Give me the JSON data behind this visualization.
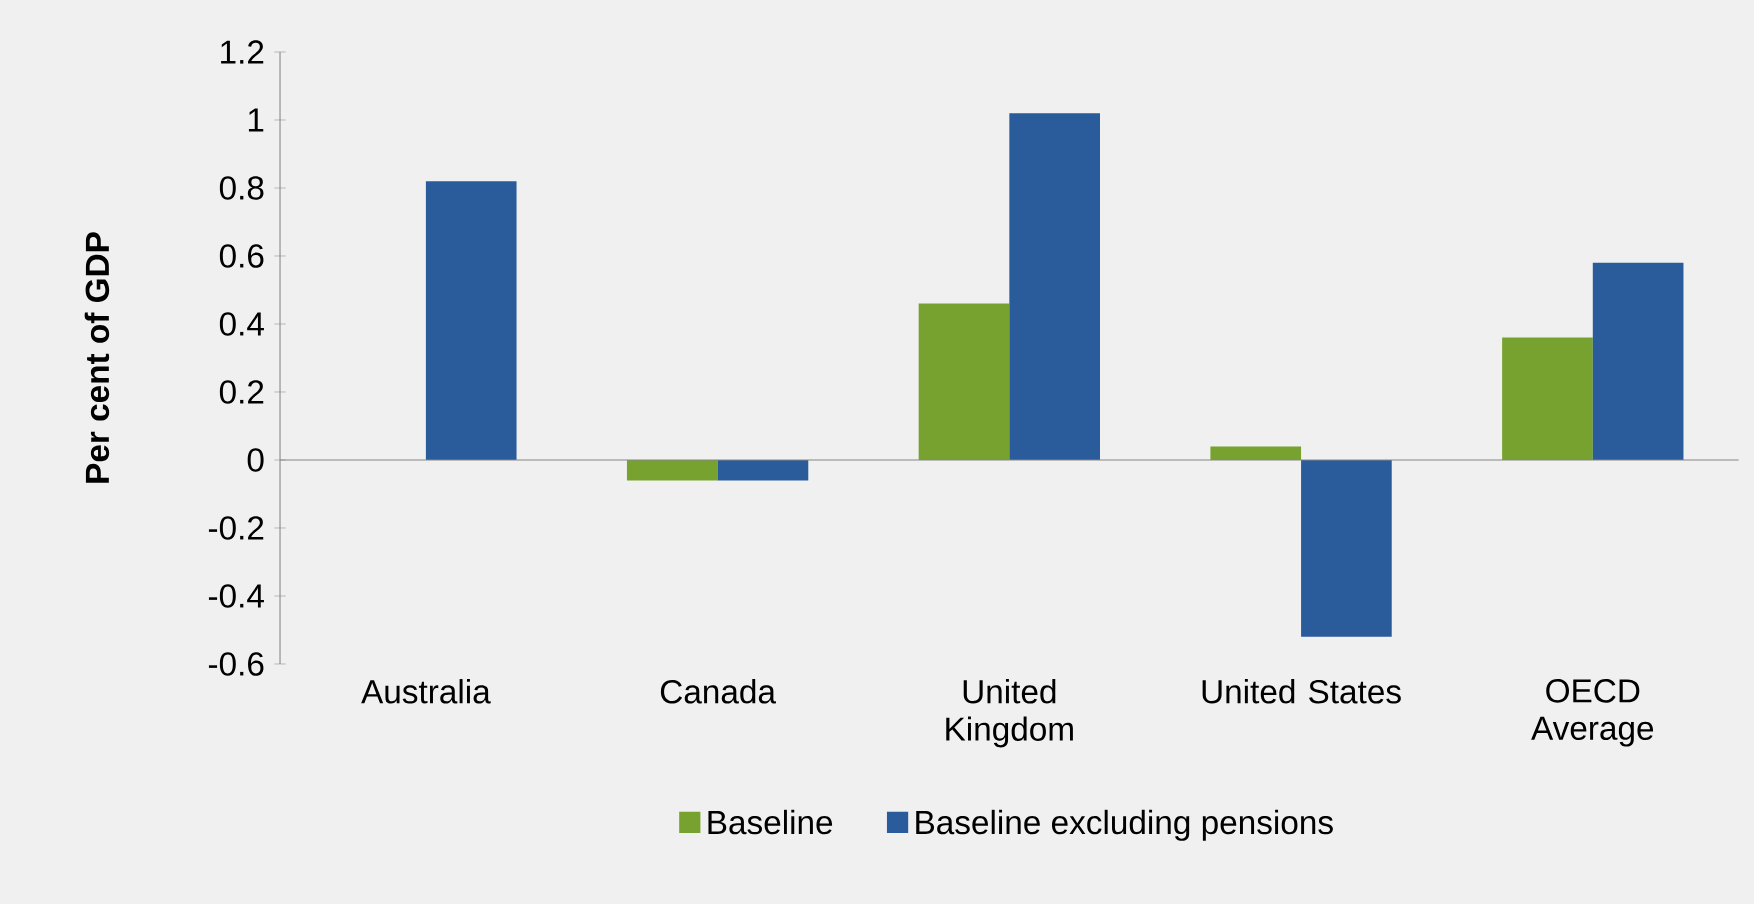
{
  "chart_data": {
    "type": "bar",
    "ylabel": "Per cent of GDP",
    "categories": [
      "Australia",
      "Canada",
      "United Kingdom",
      "United States",
      "OECD Average"
    ],
    "series": [
      {
        "name": "Baseline",
        "color": "#78a22f",
        "values": [
          null,
          -0.06,
          0.46,
          0.04,
          0.36
        ]
      },
      {
        "name": "Baseline excluding pensions",
        "color": "#2a5b9b",
        "values": [
          0.82,
          -0.06,
          1.02,
          -0.52,
          0.58
        ]
      }
    ],
    "ylim": [
      -0.6,
      1.2
    ],
    "yticks": [
      -0.6,
      -0.4,
      -0.2,
      0,
      0.2,
      0.4,
      0.6,
      0.8,
      1,
      1.2
    ],
    "legend": "bottom"
  }
}
